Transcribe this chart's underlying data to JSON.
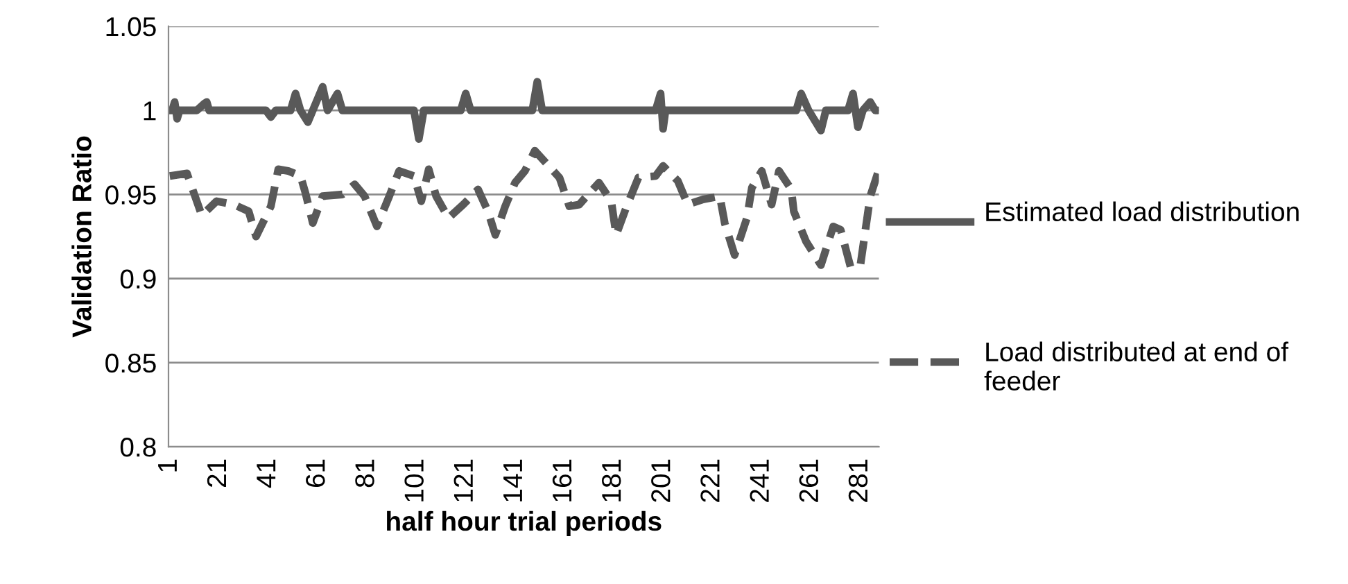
{
  "chart_data": {
    "type": "line",
    "xlabel": "half hour trial periods",
    "ylabel": "Validation Ratio",
    "xlim": [
      0.5,
      288.5
    ],
    "xticks": [
      1,
      21,
      41,
      61,
      81,
      101,
      121,
      141,
      161,
      181,
      201,
      221,
      241,
      261,
      281
    ],
    "ylim": [
      0.8,
      1.05
    ],
    "yticks": [
      0.8,
      0.85,
      0.9,
      0.95,
      1,
      1.05
    ],
    "grid": "y",
    "legend": "right",
    "marker": "none",
    "series": [
      {
        "name": "Estimated load distribution",
        "color": "#595959",
        "line_style": "solid",
        "x": [
          1,
          2,
          3,
          4,
          5,
          12,
          15,
          16,
          17,
          25,
          40,
          42,
          44,
          50,
          52,
          54,
          57,
          59,
          63,
          65,
          69,
          71,
          73,
          85,
          100,
          102,
          104,
          119,
          121,
          123,
          148,
          150,
          152,
          198,
          200,
          201,
          202,
          204,
          230,
          255,
          257,
          260,
          265,
          267,
          276,
          278,
          280,
          282,
          285,
          287,
          288
        ],
        "values": [
          1,
          1,
          1.005,
          0.995,
          1,
          1,
          1.004,
          1.005,
          1,
          1,
          1,
          0.996,
          1,
          1,
          1.01,
          1,
          0.993,
          1,
          1.014,
          1,
          1.01,
          1,
          1,
          1,
          1,
          0.983,
          1,
          1,
          1.01,
          1,
          1,
          1.017,
          1,
          1,
          1.01,
          0.989,
          1,
          1,
          1,
          1,
          1.01,
          1,
          0.988,
          1,
          1,
          1.01,
          0.99,
          1,
          1.005,
          1,
          1
        ]
      },
      {
        "name": "Load distributed at end of feeder",
        "color": "#595959",
        "line_style": "dashed",
        "x": [
          1,
          8,
          14,
          20,
          27,
          33,
          36,
          42,
          45,
          49,
          54,
          56,
          59,
          63,
          71,
          76,
          80,
          85,
          90,
          94,
          100,
          103,
          106,
          109,
          114,
          120,
          126,
          130,
          133,
          137,
          141,
          145,
          149,
          154,
          159,
          163,
          167,
          175,
          180,
          182,
          186,
          191,
          198,
          201,
          207,
          211,
          217,
          224,
          226,
          230,
          235,
          237,
          241,
          245,
          248,
          253,
          254,
          259,
          265,
          270,
          273,
          277,
          281,
          285,
          288
        ],
        "values": [
          0.961,
          0.9625,
          0.9375,
          0.946,
          0.944,
          0.94,
          0.925,
          0.943,
          0.965,
          0.964,
          0.961,
          0.951,
          0.933,
          0.949,
          0.95,
          0.956,
          0.949,
          0.931,
          0.949,
          0.964,
          0.961,
          0.946,
          0.965,
          0.949,
          0.936,
          0.944,
          0.953,
          0.94,
          0.926,
          0.943,
          0.957,
          0.964,
          0.976,
          0.968,
          0.96,
          0.943,
          0.944,
          0.957,
          0.946,
          0.926,
          0.942,
          0.96,
          0.961,
          0.967,
          0.958,
          0.944,
          0.947,
          0.949,
          0.933,
          0.914,
          0.936,
          0.954,
          0.964,
          0.944,
          0.964,
          0.953,
          0.94,
          0.922,
          0.908,
          0.931,
          0.929,
          0.907,
          0.908,
          0.949,
          0.9625
        ]
      }
    ]
  }
}
